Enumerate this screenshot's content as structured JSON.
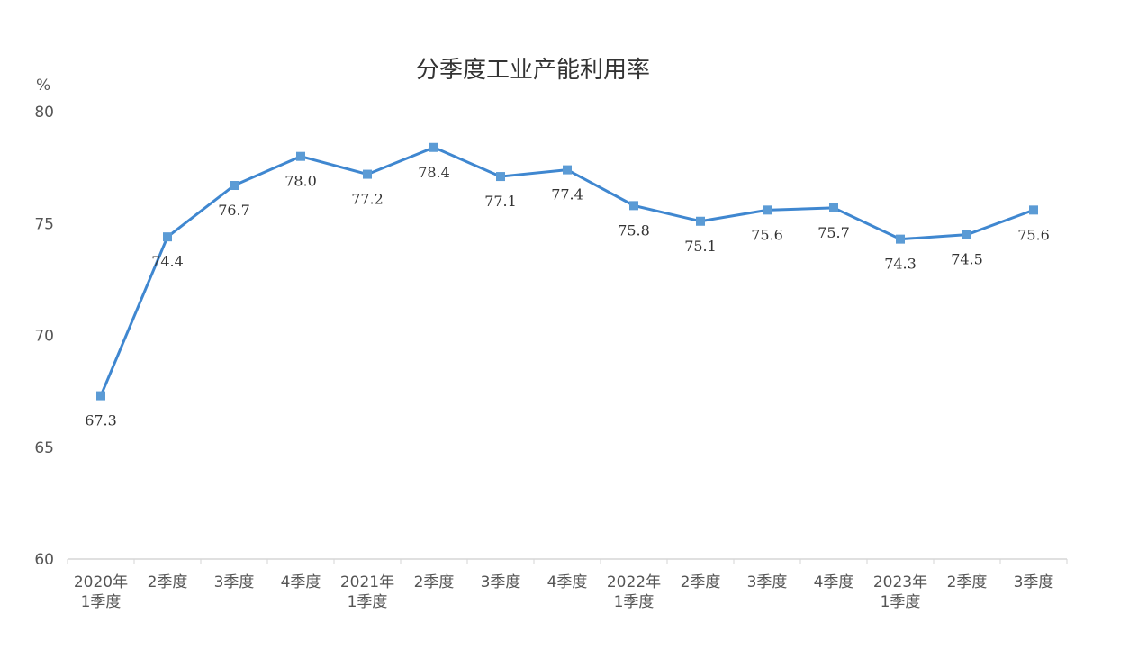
{
  "chart_data": {
    "type": "line",
    "title": "分季度工业产能利用率",
    "ylabel": "%",
    "xlabel": "",
    "ylim": [
      60,
      80
    ],
    "yticks": [
      60,
      65,
      70,
      75,
      80
    ],
    "categories": [
      [
        "2020年",
        "1季度"
      ],
      [
        "2季度"
      ],
      [
        "3季度"
      ],
      [
        "4季度"
      ],
      [
        "2021年",
        "1季度"
      ],
      [
        "2季度"
      ],
      [
        "3季度"
      ],
      [
        "4季度"
      ],
      [
        "2022年",
        "1季度"
      ],
      [
        "2季度"
      ],
      [
        "3季度"
      ],
      [
        "4季度"
      ],
      [
        "2023年",
        "1季度"
      ],
      [
        "2季度"
      ],
      [
        "3季度"
      ]
    ],
    "series": [
      {
        "name": "工业产能利用率",
        "values": [
          67.3,
          74.4,
          76.7,
          78.0,
          77.2,
          78.4,
          77.1,
          77.4,
          75.8,
          75.1,
          75.6,
          75.7,
          74.3,
          74.5,
          75.6
        ],
        "labels": [
          "67.3",
          "74.4",
          "76.7",
          "78.0",
          "77.2",
          "78.4",
          "77.1",
          "77.4",
          "75.8",
          "75.1",
          "75.6",
          "75.7",
          "74.3",
          "74.5",
          "75.6"
        ],
        "color": "#3f87d0",
        "marker_color": "#5b9bd5"
      }
    ],
    "grid": false
  }
}
